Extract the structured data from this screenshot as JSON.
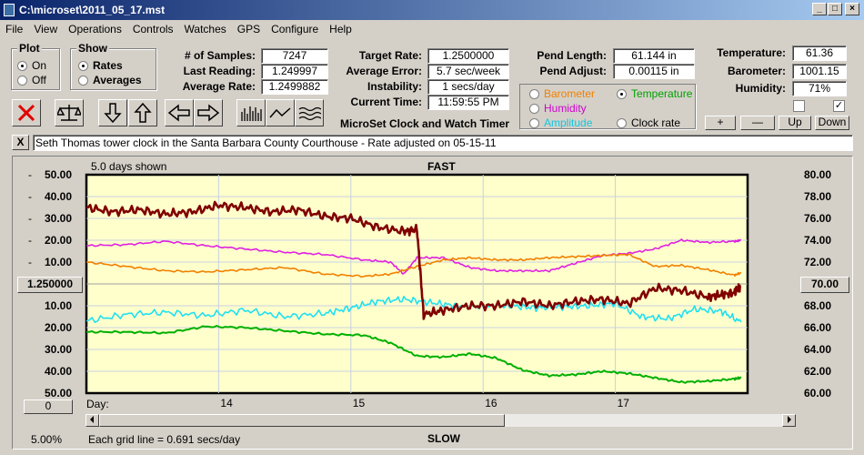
{
  "window": {
    "title": "C:\\microset\\2011_05_17.mst"
  },
  "menu": [
    "File",
    "View",
    "Operations",
    "Controls",
    "Watches",
    "GPS",
    "Configure",
    "Help"
  ],
  "plot_group": {
    "title": "Plot",
    "on": "On",
    "off": "Off",
    "selected": "On"
  },
  "show_group": {
    "title": "Show",
    "rates": "Rates",
    "averages": "Averages",
    "selected": "Rates"
  },
  "stats": {
    "samples_label": "# of Samples:",
    "samples": "7247",
    "last_reading_label": "Last Reading:",
    "last_reading": "1.249997",
    "average_rate_label": "Average Rate:",
    "average_rate": "1.2499882",
    "target_rate_label": "Target Rate:",
    "target_rate": "1.2500000",
    "average_error_label": "Average Error:",
    "average_error": "5.7 sec/week",
    "instability_label": "Instability:",
    "instability": "1 secs/day",
    "current_time_label": "Current Time:",
    "current_time": "11:59:55 PM",
    "pend_length_label": "Pend Length:",
    "pend_length": "61.144 in",
    "pend_adjust_label": "Pend Adjust:",
    "pend_adjust": "0.00115 in",
    "temperature_label": "Temperature:",
    "temperature": "61.36",
    "barometer_label": "Barometer:",
    "barometer": "1001.15",
    "humidity_label": "Humidity:",
    "humidity": "71%"
  },
  "sensor_select": {
    "barometer": "Barometer",
    "temperature": "Temperature",
    "humidity": "Humidity",
    "amplitude": "Amplitude",
    "clock_rate": "Clock rate",
    "selected": "Temperature"
  },
  "scale_buttons": {
    "plus": "+",
    "minus": "—",
    "up": "Up",
    "down": "Down"
  },
  "app_caption": "MicroSet Clock and Watch Timer",
  "note": "Seth Thomas tower clock in the Santa Barbara County Courthouse - Rate adjusted on 05-15-11",
  "note_close": "X",
  "chart_header": {
    "days_shown": "5.0 days shown",
    "top": "FAST",
    "bottom": "SLOW"
  },
  "left_center_value": "1.250000",
  "right_center_value": "70.00",
  "left_bottom_value": "0",
  "zoom_percent": "5.00%",
  "grid_note": "Each grid line = 0.691 secs/day",
  "x_axis_prefix": "Day:",
  "colors": {
    "bg": "#ffffcc",
    "rate": "#800000",
    "temperature": "#00b000",
    "humidity": "#e020e0",
    "barometer": "#f08000",
    "amplitude": "#20e0f0"
  },
  "chart_data": {
    "type": "line",
    "title": "",
    "x_ticks": [
      "14",
      "15",
      "16",
      "17"
    ],
    "x_range_days": [
      13.0,
      18.0
    ],
    "left_axis": {
      "labels": [
        "50.00",
        "40.00",
        "30.00",
        "20.00",
        "10.00",
        "",
        "10.00",
        "20.00",
        "30.00",
        "40.00",
        "50.00"
      ],
      "range": [
        -50,
        50
      ]
    },
    "right_axis": {
      "labels": [
        "80.00",
        "78.00",
        "76.00",
        "74.00",
        "72.00",
        "70.00",
        "68.00",
        "66.00",
        "64.00",
        "62.00",
        "60.00"
      ],
      "range": [
        60,
        80
      ]
    },
    "series": [
      {
        "key": "rate",
        "axis": "left",
        "x": [
          13.0,
          13.2,
          13.4,
          13.6,
          13.8,
          14.0,
          14.2,
          14.4,
          14.6,
          14.8,
          15.0,
          15.2,
          15.4,
          15.5,
          15.55,
          15.7,
          15.9,
          16.1,
          16.3,
          16.5,
          16.7,
          16.9,
          17.1,
          17.3,
          17.5,
          17.7,
          17.8,
          17.9,
          17.95
        ],
        "y": [
          35,
          33,
          34,
          32,
          33,
          36,
          35,
          33,
          34,
          31,
          30,
          26,
          24,
          25,
          -14,
          -12,
          -10,
          -10,
          -8,
          -10,
          -8,
          -7,
          -9,
          -2,
          -3,
          -6,
          -5,
          -4,
          -1
        ]
      },
      {
        "key": "temperature",
        "axis": "right",
        "x": [
          13.0,
          13.3,
          13.6,
          13.9,
          14.2,
          14.5,
          14.8,
          15.1,
          15.3,
          15.5,
          15.7,
          15.9,
          16.1,
          16.3,
          16.5,
          16.7,
          16.9,
          17.1,
          17.3,
          17.5,
          17.7,
          17.9,
          17.95
        ],
        "y": [
          65.6,
          65.6,
          65.5,
          66.1,
          66.0,
          65.7,
          65.4,
          65.3,
          64.6,
          63.4,
          63.3,
          63.6,
          63.2,
          62.1,
          61.6,
          61.7,
          62.0,
          61.8,
          61.4,
          61.0,
          61.1,
          61.3,
          61.4
        ]
      },
      {
        "key": "humidity",
        "axis": "right",
        "x": [
          13.0,
          13.3,
          13.6,
          13.9,
          14.2,
          14.5,
          14.8,
          15.1,
          15.3,
          15.4,
          15.5,
          15.7,
          15.9,
          16.1,
          16.3,
          16.5,
          16.7,
          16.9,
          17.1,
          17.3,
          17.5,
          17.7,
          17.9,
          17.95
        ],
        "y": [
          73.5,
          73.6,
          73.9,
          73.5,
          73.2,
          72.9,
          72.7,
          72.2,
          72.0,
          70.9,
          72.4,
          72.4,
          71.5,
          71.2,
          71.2,
          71.2,
          71.9,
          72.6,
          72.8,
          73.2,
          74.0,
          73.8,
          73.9,
          74.0
        ]
      },
      {
        "key": "barometer",
        "axis": "right",
        "x": [
          13.0,
          13.3,
          13.6,
          13.9,
          14.2,
          14.5,
          14.8,
          15.1,
          15.3,
          15.5,
          15.7,
          15.9,
          16.1,
          16.3,
          16.5,
          16.7,
          16.9,
          17.1,
          17.3,
          17.5,
          17.7,
          17.9,
          17.95
        ],
        "y": [
          72.0,
          71.6,
          71.2,
          71.1,
          71.3,
          71.5,
          70.9,
          70.7,
          70.9,
          71.6,
          72.2,
          72.4,
          72.2,
          72.2,
          72.4,
          72.5,
          72.6,
          72.7,
          71.6,
          71.7,
          71.3,
          70.8,
          71.0
        ]
      },
      {
        "key": "amplitude",
        "axis": "right",
        "x": [
          13.0,
          13.3,
          13.6,
          13.9,
          14.2,
          14.5,
          14.8,
          15.0,
          15.2,
          15.4,
          15.6,
          15.8,
          16.0,
          16.2,
          16.4,
          16.6,
          16.8,
          17.0,
          17.2,
          17.4,
          17.6,
          17.8,
          17.95
        ],
        "y": [
          66.6,
          67.2,
          67.4,
          67.1,
          67.6,
          67.0,
          67.3,
          67.8,
          68.4,
          68.6,
          68.3,
          68.0,
          67.9,
          68.0,
          67.8,
          67.9,
          68.0,
          68.2,
          67.0,
          66.8,
          67.7,
          67.5,
          66.5
        ]
      }
    ]
  }
}
